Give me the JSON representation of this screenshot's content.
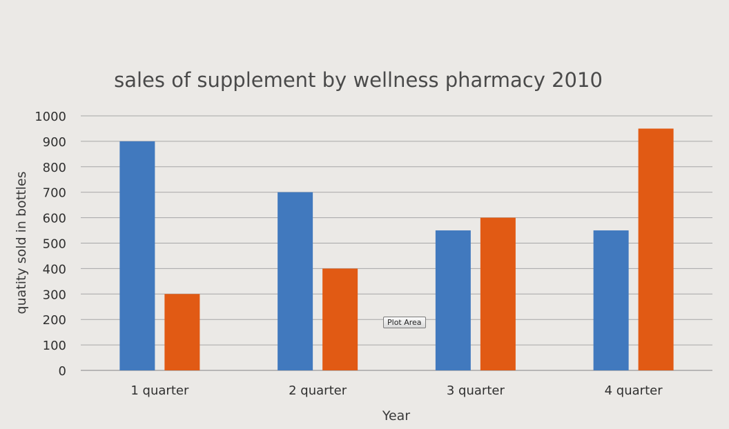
{
  "chart_data": {
    "type": "bar",
    "title": "sales of supplement by wellness pharmacy 2010",
    "xlabel": "Year",
    "ylabel": "quatity sold in bottles",
    "categories": [
      "1 quarter",
      "2 quarter",
      "3 quarter",
      "4 quarter"
    ],
    "series": [
      {
        "values": [
          900,
          700,
          550,
          550
        ],
        "color": "#4179be"
      },
      {
        "values": [
          300,
          400,
          600,
          950
        ],
        "color": "#e15a14"
      }
    ],
    "ylim": [
      0,
      1000
    ],
    "yticks": [
      0,
      100,
      200,
      300,
      400,
      500,
      600,
      700,
      800,
      900,
      1000
    ],
    "grid": true,
    "legend": "none"
  },
  "tooltip": {
    "label": "Plot Area"
  },
  "colors": {
    "background": "#ebe9e6",
    "gridline": "#a6a6a6"
  }
}
